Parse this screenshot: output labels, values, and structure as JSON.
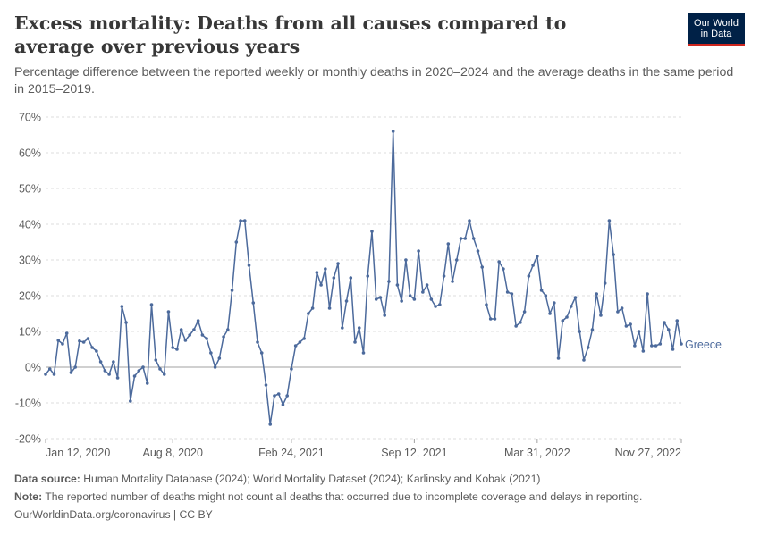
{
  "header": {
    "title": "Excess mortality: Deaths from all causes compared to average over previous years",
    "subtitle": "Percentage difference between the reported weekly or monthly deaths in 2020–2024 and the average deaths in the same period in 2015–2019."
  },
  "logo": {
    "line1": "Our World",
    "line2": "in Data"
  },
  "footer": {
    "source_label": "Data source:",
    "source_text": "Human Mortality Database (2024); World Mortality Dataset (2024); Karlinsky and Kobak (2021)",
    "note_label": "Note:",
    "note_text": "The reported number of deaths might not count all deaths that occurred due to incomplete coverage and delays in reporting.",
    "credit": "OurWorldinData.org/coronavirus | CC BY"
  },
  "colors": {
    "series": "#4c6a9c",
    "grid": "#dddddd",
    "zero": "#a1a1a1",
    "text": "#5b5b5b"
  },
  "chart_data": {
    "type": "line",
    "title": "Excess mortality: Deaths from all causes compared to average over previous years",
    "xlabel": "",
    "ylabel": "",
    "ylim": [
      -20,
      70
    ],
    "yticks": [
      -20,
      -10,
      0,
      10,
      20,
      30,
      40,
      50,
      60,
      70
    ],
    "ytick_labels": [
      "-20%",
      "-10%",
      "0%",
      "10%",
      "20%",
      "30%",
      "40%",
      "50%",
      "60%",
      "70%"
    ],
    "xtick_labels": [
      "Jan 12, 2020",
      "Aug 8, 2020",
      "Feb 24, 2021",
      "Sep 12, 2021",
      "Mar 31, 2022",
      "Nov 27, 2022"
    ],
    "xtick_index": [
      0,
      30,
      58,
      87,
      116,
      150
    ],
    "series": [
      {
        "name": "Greece",
        "values": [
          -2,
          -0.5,
          -2,
          7.5,
          6.5,
          9.5,
          -1.5,
          0,
          7.3,
          7,
          8,
          5.5,
          4.5,
          1.5,
          -1,
          -2,
          1.5,
          -3,
          17,
          12.5,
          -9.5,
          -2.5,
          -1,
          0,
          -4.5,
          17.5,
          2,
          -0.5,
          -2,
          15.5,
          5.5,
          5,
          10.5,
          7.5,
          9,
          10.5,
          13,
          9,
          8,
          4,
          0,
          2.5,
          8.5,
          10.5,
          21.5,
          35,
          41,
          41,
          28.5,
          18,
          7,
          4,
          -5,
          -16,
          -8,
          -7.5,
          -10.5,
          -8,
          -0.5,
          6,
          7,
          8,
          15,
          16.5,
          26.5,
          23,
          27.5,
          16.5,
          25,
          29,
          11,
          18.5,
          25,
          7,
          11,
          4,
          25.5,
          38,
          19,
          19.5,
          14.5,
          24,
          66,
          23,
          18.5,
          30,
          20,
          19,
          32.5,
          21,
          23,
          19,
          17,
          17.5,
          25.5,
          34.5,
          24,
          30,
          36,
          36,
          41,
          36,
          32.5,
          28,
          17.5,
          13.5,
          13.5,
          29.5,
          27.5,
          21,
          20.5,
          11.5,
          12.5,
          15.5,
          25.5,
          28.5,
          31,
          21.5,
          20,
          15,
          18,
          2.5,
          13,
          14,
          17,
          19.5,
          10,
          2,
          5.5,
          10.5,
          20.5,
          14.5,
          23.5,
          41,
          31.5,
          15.5,
          16.5,
          11.5,
          12,
          6,
          10,
          4.5,
          20.5,
          6,
          6,
          6.5,
          12.5,
          10.5,
          5,
          13,
          6.5
        ]
      }
    ]
  }
}
